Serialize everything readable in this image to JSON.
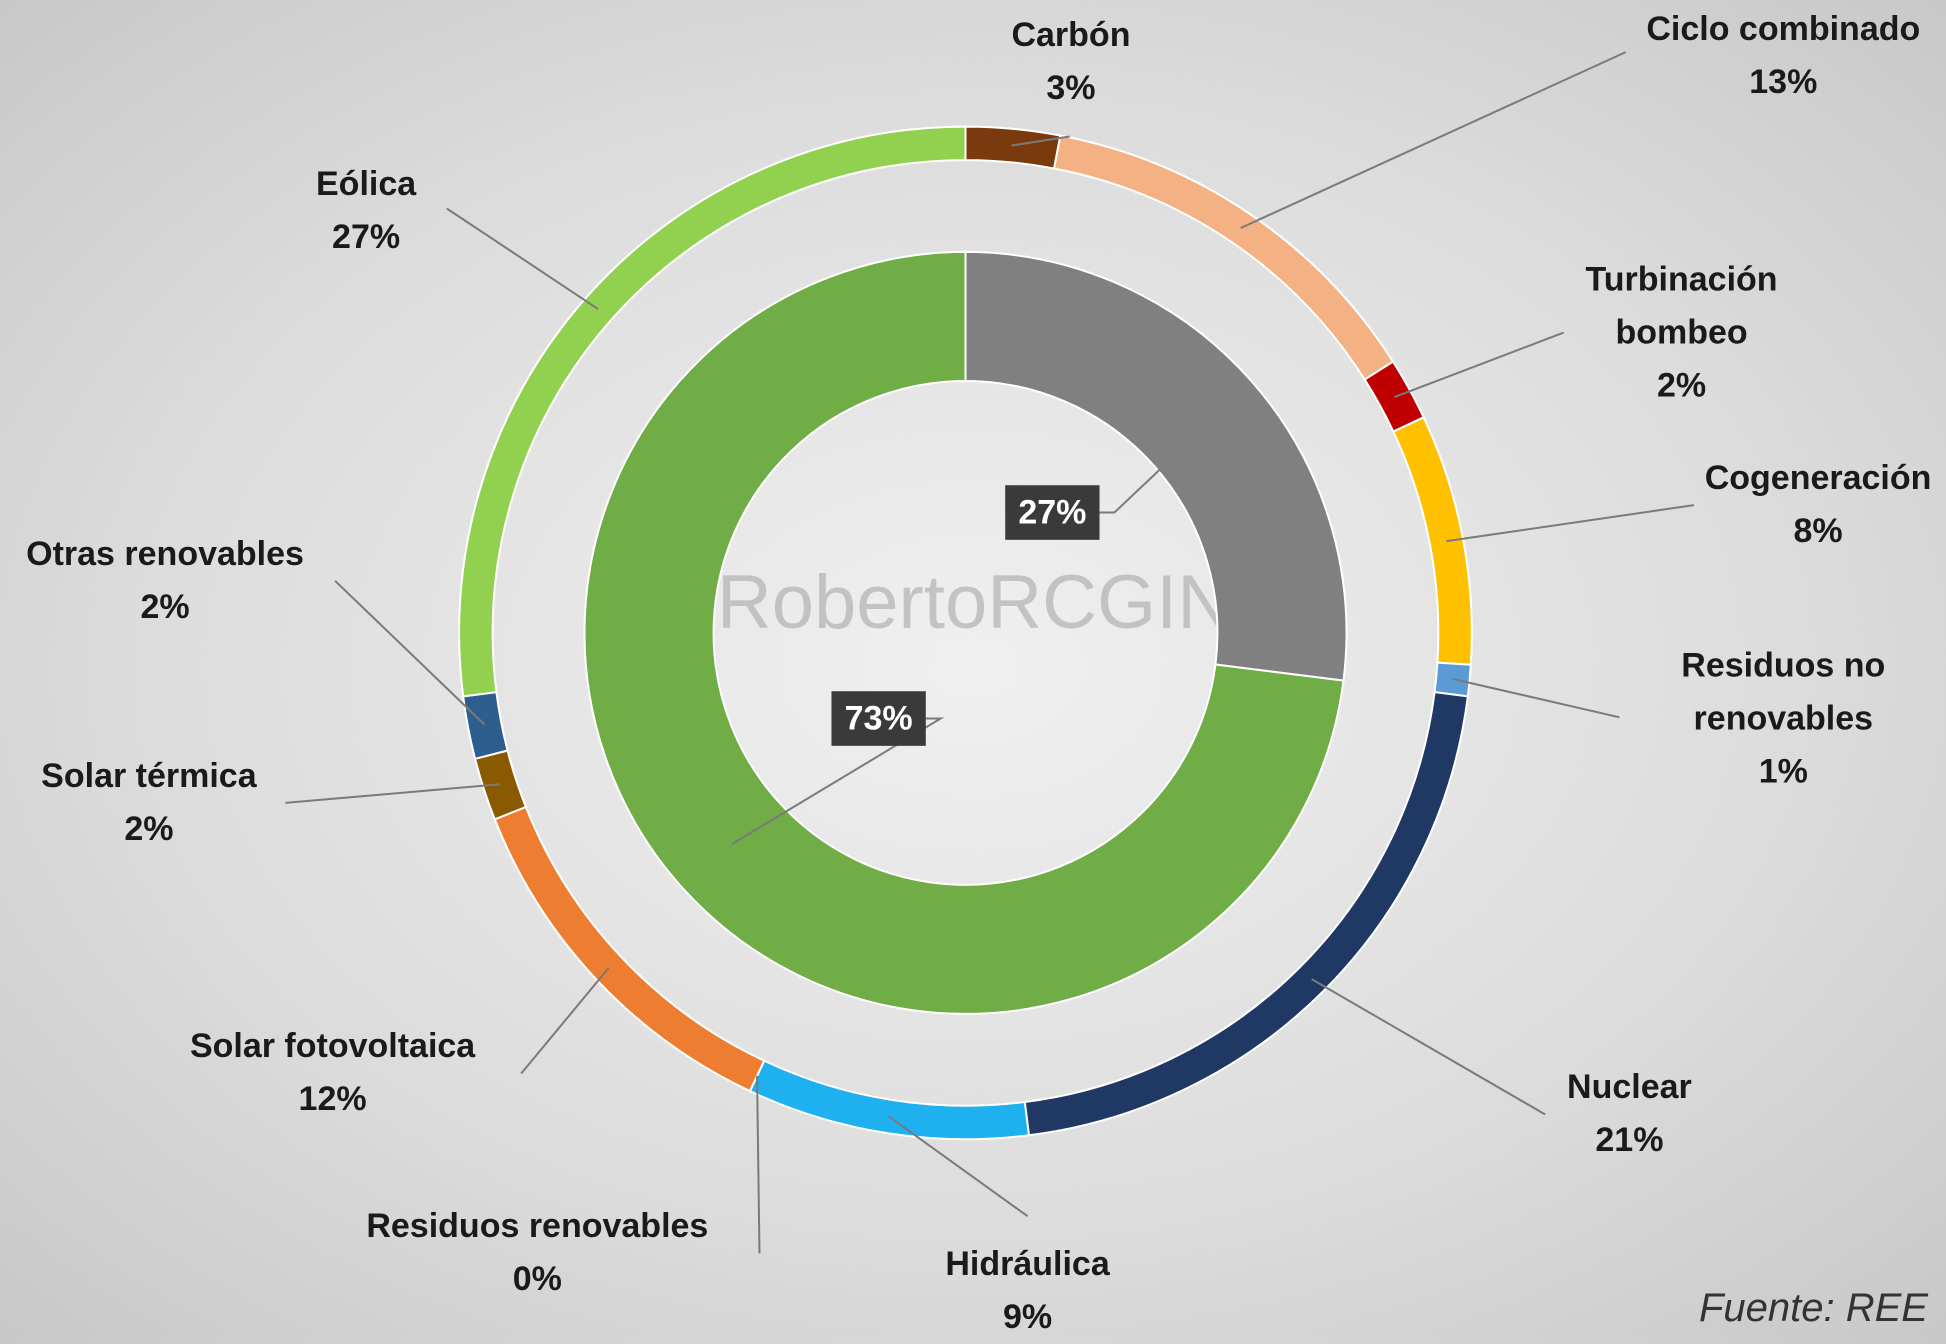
{
  "chart_data": {
    "type": "donut",
    "watermark": "@RobertoRCGING",
    "source": "Fuente: REE",
    "series": [
      {
        "categories": [
          "Carbón",
          "Ciclo combinado",
          "Turbinación bombeo",
          "Cogeneración",
          "Residuos no renovables",
          "Nuclear",
          "Hidráulica",
          "Residuos renovables",
          "Solar fotovoltaica",
          "Solar térmica",
          "Otras renovables",
          "Eólica"
        ],
        "values": [
          3,
          13,
          2,
          8,
          1,
          21,
          9,
          0,
          12,
          2,
          2,
          27
        ],
        "value_labels": [
          "3%",
          "13%",
          "2%",
          "8%",
          "1%",
          "21%",
          "9%",
          "0%",
          "12%",
          "2%",
          "2%",
          "27%"
        ],
        "colors": [
          "#7b3a0e",
          "#f4b183",
          "#c00000",
          "#ffc000",
          "#5b9bd5",
          "#1f3864",
          "#1fb0f0",
          "#843c0c",
          "#ed7d31",
          "#8a5a00",
          "#2e5e8e",
          "#92d050"
        ]
      },
      {
        "values": [
          27,
          73
        ],
        "value_labels": [
          "27%",
          "73%"
        ],
        "colors": [
          "#808080",
          "#70ad47"
        ]
      }
    ]
  }
}
